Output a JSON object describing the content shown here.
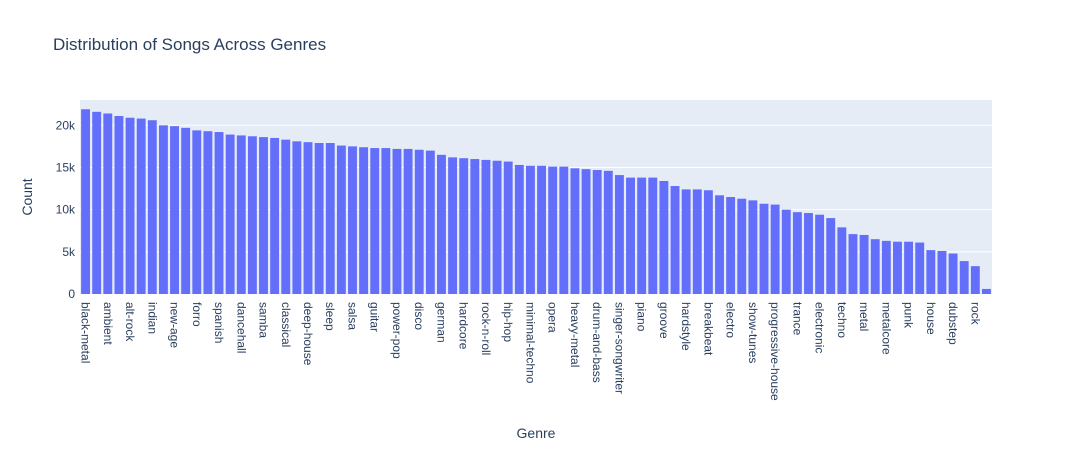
{
  "chart_data": {
    "type": "bar",
    "title": "Distribution of Songs Across Genres",
    "xlabel": "Genre",
    "ylabel": "Count",
    "ylim": [
      0,
      23000
    ],
    "yticks": [
      0,
      5000,
      10000,
      15000,
      20000
    ],
    "ytick_labels": [
      "0",
      "5k",
      "10k",
      "15k",
      "20k"
    ],
    "grid": true,
    "bar_color": "#636efa",
    "plot_bg": "#e5ecf6",
    "tick_label_every": 2,
    "categories": [
      "black-metal",
      "c02",
      "ambient",
      "c04",
      "alt-rock",
      "c06",
      "indian",
      "c08",
      "new-age",
      "c10",
      "forro",
      "c12",
      "spanish",
      "c14",
      "dancehall",
      "c16",
      "samba",
      "c18",
      "classical",
      "c20",
      "deep-house",
      "c22",
      "sleep",
      "c24",
      "salsa",
      "c26",
      "guitar",
      "c28",
      "power-pop",
      "c30",
      "disco",
      "c32",
      "german",
      "c34",
      "hardcore",
      "c36",
      "rock-n-roll",
      "c38",
      "hip-hop",
      "c40",
      "minimal-techno",
      "c42",
      "opera",
      "c44",
      "heavy-metal",
      "c46",
      "drum-and-bass",
      "c48",
      "singer-songwriter",
      "c50",
      "piano",
      "c52",
      "groove",
      "c54",
      "hardstyle",
      "c56",
      "breakbeat",
      "c58",
      "electro",
      "c60",
      "show-tunes",
      "c62",
      "progressive-house",
      "c64",
      "trance",
      "c66",
      "electronic",
      "c68",
      "techno",
      "c70",
      "metal",
      "c72",
      "metalcore",
      "c74",
      "punk",
      "c76",
      "house",
      "c78",
      "dubstep",
      "c80",
      "rock",
      "c82"
    ],
    "values": [
      21900,
      21600,
      21400,
      21100,
      20900,
      20800,
      20600,
      20000,
      19900,
      19700,
      19400,
      19300,
      19200,
      18900,
      18800,
      18700,
      18600,
      18500,
      18300,
      18100,
      18000,
      17900,
      17900,
      17600,
      17500,
      17400,
      17300,
      17300,
      17200,
      17200,
      17100,
      17000,
      16500,
      16200,
      16100,
      16000,
      15900,
      15800,
      15700,
      15300,
      15200,
      15200,
      15100,
      15100,
      14900,
      14800,
      14700,
      14600,
      14100,
      13800,
      13800,
      13800,
      13400,
      12800,
      12400,
      12400,
      12300,
      11700,
      11500,
      11300,
      11100,
      10700,
      10600,
      10000,
      9700,
      9600,
      9400,
      9000,
      7900,
      7100,
      7000,
      6500,
      6300,
      6200,
      6200,
      6100,
      5200,
      5100,
      4800,
      3900,
      3300,
      600
    ]
  }
}
